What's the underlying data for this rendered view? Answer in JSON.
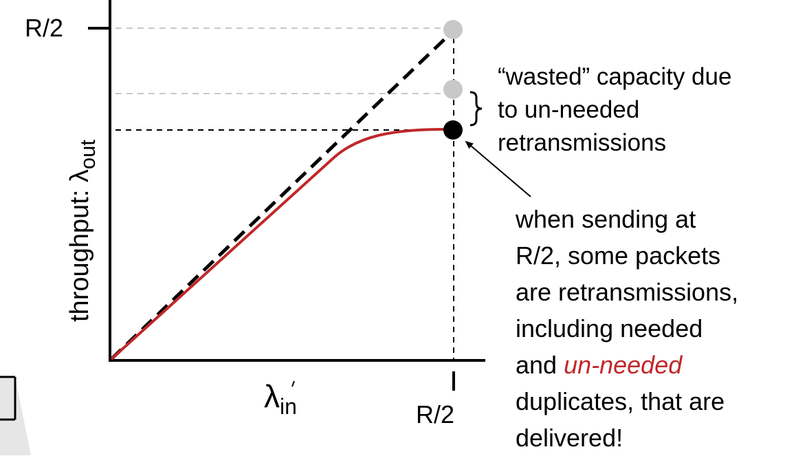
{
  "axes": {
    "y_axis_label": "throughput: λ",
    "y_axis_subscript": "out",
    "y_tick_label": "R/2",
    "x_axis_label": "λ",
    "x_axis_subscript": "in",
    "x_tick_label": "R/2"
  },
  "wasted_note": {
    "line1": "“wasted” capacity due",
    "line2": "to un-needed",
    "line3": "retransmissions"
  },
  "main_note": {
    "line1": "when sending at",
    "line2": "R/2, some packets",
    "line3": "are retransmissions,",
    "line4": "including needed",
    "line5_prefix": "and ",
    "line5_emphasis": "un-needed",
    "line6": "duplicates, that are",
    "line7": "delivered!"
  },
  "colors": {
    "throughput_curve": "#c0282a",
    "ideal_line": "#000000",
    "gray_markers": "#c8c8c8",
    "emphasis_text": "#c0282a"
  }
}
